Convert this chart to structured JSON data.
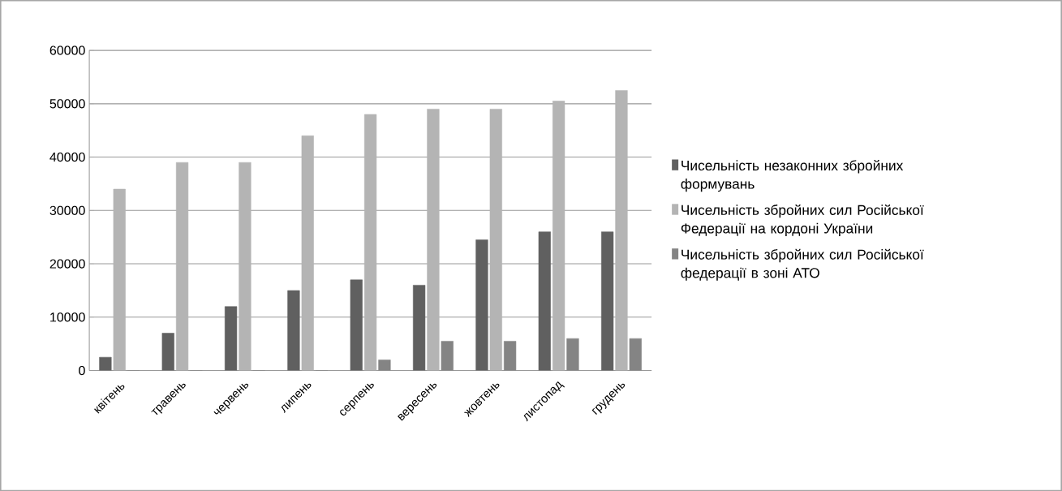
{
  "chart_data": {
    "type": "bar",
    "categories": [
      "квітень",
      "травень",
      "червень",
      "липень",
      "серпень",
      "вересень",
      "жовтень",
      "листопад",
      "грудень"
    ],
    "series": [
      {
        "name": "Чисельність незаконних збройних формувань",
        "color": "#606060",
        "values": [
          2500,
          7000,
          12000,
          15000,
          17000,
          16000,
          24500,
          26000,
          26000
        ]
      },
      {
        "name": "Чисельність збройних сил Російської Федерації на кордоні України",
        "color": "#b4b4b4",
        "values": [
          34000,
          39000,
          39000,
          44000,
          48000,
          49000,
          49000,
          50500,
          52500
        ]
      },
      {
        "name": "Чисельність збройних сил Російської федерації в зоні АТО",
        "color": "#848484",
        "values": [
          0,
          0,
          0,
          0,
          2000,
          5500,
          5500,
          6000,
          6000
        ]
      }
    ],
    "ylim": [
      0,
      60000
    ],
    "yticks": [
      0,
      10000,
      20000,
      30000,
      40000,
      50000,
      60000
    ],
    "grid": "y",
    "legend": "right"
  }
}
